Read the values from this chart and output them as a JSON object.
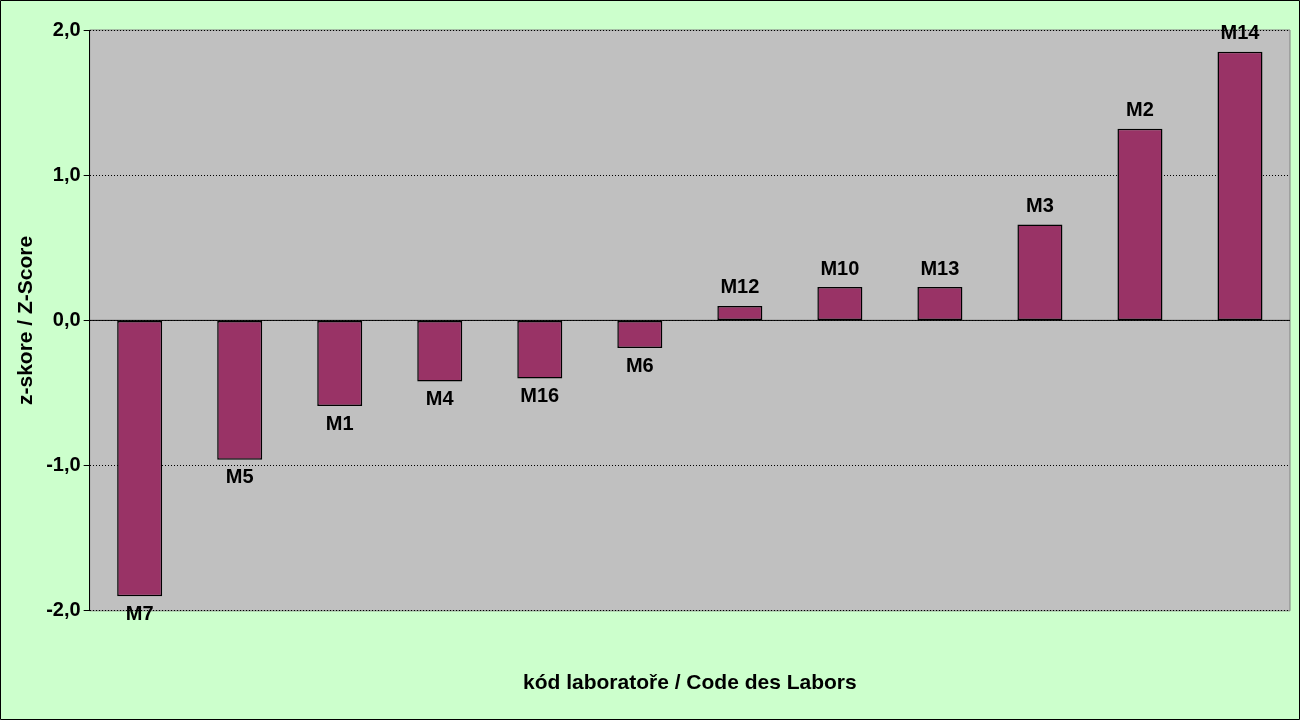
{
  "chart_data": {
    "type": "bar",
    "xlabel": "kód laboratoře / Code des Labors",
    "ylabel": "z-skore / Z-Score",
    "categories": [
      "M7",
      "M5",
      "M1",
      "M4",
      "M16",
      "M6",
      "M12",
      "M10",
      "M13",
      "M3",
      "M2",
      "M14"
    ],
    "values": [
      -1.9,
      -0.96,
      -0.59,
      -0.42,
      -0.4,
      -0.19,
      0.1,
      0.23,
      0.23,
      0.66,
      1.32,
      1.85
    ],
    "color": "#993366",
    "ylim": [
      -2,
      2
    ],
    "yticks": [
      {
        "value": -2,
        "label": "-2,0"
      },
      {
        "value": -1,
        "label": "-1,0"
      },
      {
        "value": 0,
        "label": "0,0"
      },
      {
        "value": 1,
        "label": "1,0"
      },
      {
        "value": 2,
        "label": "2,0"
      }
    ],
    "grid": "y",
    "legend": false,
    "tick_labels": "y"
  }
}
